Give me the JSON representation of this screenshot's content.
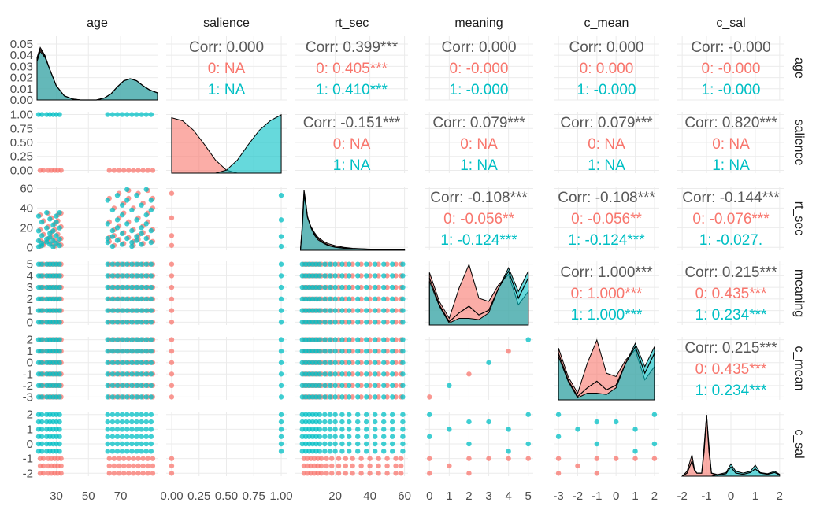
{
  "colors": {
    "group0": "#F8766D",
    "group1": "#00BFC4",
    "overall": "#595959",
    "grid": "#ebebeb",
    "line": "#000000"
  },
  "chart_data": {
    "type": "scatter",
    "matrix": "pairs",
    "variables": [
      "age",
      "salience",
      "rt_sec",
      "meaning",
      "c_mean",
      "c_sal"
    ],
    "groups": [
      "0",
      "1"
    ],
    "axes": {
      "age": {
        "range": [
          18,
          93
        ],
        "ticks": [
          "30",
          "50",
          "70"
        ],
        "tick_values": [
          30,
          50,
          70
        ],
        "density_range": [
          0,
          0.057
        ],
        "density_ticks": [
          "0.00",
          "0.01",
          "0.02",
          "0.03",
          "0.04",
          "0.05"
        ],
        "density_tick_values": [
          0,
          0.01,
          0.02,
          0.03,
          0.04,
          0.05
        ]
      },
      "salience": {
        "range": [
          -0.05,
          1.05
        ],
        "ticks": [
          "0.00",
          "0.25",
          "0.50",
          "0.75",
          "1.00"
        ],
        "tick_values": [
          0,
          0.25,
          0.5,
          0.75,
          1
        ]
      },
      "rt_sec": {
        "range": [
          -3,
          62
        ],
        "ticks": [
          "20",
          "40",
          "60"
        ],
        "tick_values": [
          20,
          40,
          60
        ],
        "row_ticks": [
          "0",
          "20",
          "40",
          "60"
        ],
        "row_tick_values": [
          0,
          20,
          40,
          60
        ]
      },
      "meaning": {
        "range": [
          -0.25,
          5.25
        ],
        "ticks": [
          "0",
          "1",
          "2",
          "3",
          "4",
          "5"
        ],
        "tick_values": [
          0,
          1,
          2,
          3,
          4,
          5
        ]
      },
      "c_mean": {
        "range": [
          -3.25,
          2.25
        ],
        "ticks": [
          "-3",
          "-2",
          "-1",
          "0",
          "1",
          "2"
        ],
        "tick_values": [
          -3,
          -2,
          -1,
          0,
          1,
          2
        ]
      },
      "c_sal": {
        "range": [
          -2.2,
          2.2
        ],
        "ticks": [
          "-2",
          "-1",
          "0",
          "1",
          "2"
        ],
        "tick_values": [
          -2,
          -1,
          0,
          1,
          2
        ],
        "row_ticks": [
          "-2",
          "-1",
          "0",
          "1",
          "2"
        ],
        "row_tick_values": [
          -2,
          -1,
          0,
          1,
          2
        ]
      }
    },
    "correlations": [
      {
        "row": "age",
        "col": "salience",
        "overall": "Corr: 0.000",
        "g0": "0:   NA",
        "g1": "1:   NA"
      },
      {
        "row": "age",
        "col": "rt_sec",
        "overall": "Corr: 0.399***",
        "g0": "0: 0.405***",
        "g1": "1: 0.410***"
      },
      {
        "row": "age",
        "col": "meaning",
        "overall": "Corr: 0.000",
        "g0": "0: -0.000",
        "g1": "1: -0.000"
      },
      {
        "row": "age",
        "col": "c_mean",
        "overall": "Corr: 0.000",
        "g0": "0: 0.000",
        "g1": "1: -0.000"
      },
      {
        "row": "age",
        "col": "c_sal",
        "overall": "Corr: -0.000",
        "g0": "0: -0.000",
        "g1": "1: -0.000"
      },
      {
        "row": "salience",
        "col": "rt_sec",
        "overall": "Corr: -0.151***",
        "g0": "0:   NA",
        "g1": "1:   NA"
      },
      {
        "row": "salience",
        "col": "meaning",
        "overall": "Corr: 0.079***",
        "g0": "0:   NA",
        "g1": "1:   NA"
      },
      {
        "row": "salience",
        "col": "c_mean",
        "overall": "Corr: 0.079***",
        "g0": "0:   NA",
        "g1": "1:   NA"
      },
      {
        "row": "salience",
        "col": "c_sal",
        "overall": "Corr: 0.820***",
        "g0": "0:   NA",
        "g1": "1:   NA"
      },
      {
        "row": "rt_sec",
        "col": "meaning",
        "overall": "Corr: -0.108***",
        "g0": "0: -0.056**",
        "g1": "1: -0.124***"
      },
      {
        "row": "rt_sec",
        "col": "c_mean",
        "overall": "Corr: -0.108***",
        "g0": "0: -0.056**",
        "g1": "1: -0.124***"
      },
      {
        "row": "rt_sec",
        "col": "c_sal",
        "overall": "Corr: -0.144***",
        "g0": "0: -0.076***",
        "g1": "1: -0.027."
      },
      {
        "row": "meaning",
        "col": "c_mean",
        "overall": "Corr: 1.000***",
        "g0": "0: 1.000***",
        "g1": "1: 1.000***"
      },
      {
        "row": "meaning",
        "col": "c_sal",
        "overall": "Corr: 0.215***",
        "g0": "0: 0.435***",
        "g1": "1: 0.234***"
      },
      {
        "row": "c_mean",
        "col": "c_sal",
        "overall": "Corr: 0.215***",
        "g0": "0: 0.435***",
        "g1": "1: 0.234***"
      }
    ],
    "densities": {
      "age": {
        "x": [
          18,
          20,
          23,
          26,
          30,
          35,
          40,
          45,
          50,
          55,
          60,
          64,
          68,
          72,
          76,
          80,
          84,
          88,
          93
        ],
        "overall": [
          0.04,
          0.05,
          0.043,
          0.03,
          0.014,
          0.004,
          0.001,
          0.0,
          0.0,
          0.0,
          0.002,
          0.006,
          0.013,
          0.019,
          0.021,
          0.019,
          0.014,
          0.01,
          0.007
        ],
        "g0": [
          0.042,
          0.052,
          0.044,
          0.03,
          0.014,
          0.004,
          0.001,
          0.0,
          0.0,
          0.0,
          0.002,
          0.006,
          0.013,
          0.019,
          0.021,
          0.019,
          0.014,
          0.01,
          0.007
        ],
        "g1": [
          0.038,
          0.048,
          0.042,
          0.03,
          0.014,
          0.004,
          0.001,
          0.0,
          0.0,
          0.0,
          0.002,
          0.006,
          0.013,
          0.019,
          0.021,
          0.019,
          0.014,
          0.01,
          0.007
        ]
      },
      "salience": {
        "x": [
          0,
          0.1,
          0.2,
          0.3,
          0.4,
          0.5,
          0.6,
          0.7,
          0.8,
          0.9,
          1
        ],
        "g0": [
          0.93,
          0.88,
          0.72,
          0.48,
          0.22,
          0.05,
          0.0,
          0.0,
          0.0,
          0.0,
          0.0
        ],
        "g1": [
          0.0,
          0.0,
          0.0,
          0.0,
          0.0,
          0.05,
          0.22,
          0.48,
          0.72,
          0.88,
          0.98
        ]
      },
      "rt_sec": {
        "x": [
          0,
          1,
          2,
          3,
          4,
          6,
          8,
          10,
          13,
          16,
          20,
          25,
          30,
          40,
          50,
          60
        ],
        "overall": [
          0.02,
          0.35,
          0.85,
          0.7,
          0.5,
          0.35,
          0.25,
          0.18,
          0.12,
          0.08,
          0.05,
          0.035,
          0.025,
          0.015,
          0.01,
          0.008
        ],
        "g0": [
          0.02,
          0.3,
          0.8,
          0.68,
          0.5,
          0.36,
          0.27,
          0.2,
          0.14,
          0.1,
          0.07,
          0.045,
          0.03,
          0.018,
          0.012,
          0.009
        ],
        "g1": [
          0.02,
          0.4,
          0.92,
          0.74,
          0.52,
          0.34,
          0.23,
          0.16,
          0.11,
          0.07,
          0.045,
          0.03,
          0.02,
          0.012,
          0.008,
          0.006
        ]
      },
      "meaning": {
        "x": [
          0,
          0.5,
          1,
          1.5,
          2,
          2.5,
          3,
          3.5,
          4,
          4.5,
          5
        ],
        "overall": [
          0.7,
          0.3,
          0.05,
          0.18,
          0.28,
          0.15,
          0.22,
          0.55,
          0.8,
          0.4,
          0.7
        ],
        "g0": [
          0.78,
          0.35,
          0.1,
          0.55,
          0.9,
          0.4,
          0.35,
          0.6,
          0.75,
          0.3,
          0.5
        ],
        "g1": [
          0.65,
          0.28,
          0.03,
          0.1,
          0.1,
          0.08,
          0.18,
          0.55,
          0.85,
          0.5,
          0.8
        ]
      },
      "c_mean": {
        "x": [
          -3,
          -2.5,
          -2,
          -1.5,
          -1,
          -0.5,
          0,
          0.5,
          1,
          1.5,
          2
        ],
        "overall": [
          0.7,
          0.3,
          0.05,
          0.18,
          0.28,
          0.15,
          0.22,
          0.55,
          0.8,
          0.4,
          0.7
        ],
        "g0": [
          0.78,
          0.35,
          0.1,
          0.55,
          0.9,
          0.4,
          0.35,
          0.6,
          0.75,
          0.3,
          0.5
        ],
        "g1": [
          0.65,
          0.28,
          0.03,
          0.1,
          0.1,
          0.08,
          0.18,
          0.55,
          0.85,
          0.5,
          0.8
        ]
      },
      "c_sal": {
        "x": [
          -2,
          -1.8,
          -1.6,
          -1.5,
          -1.4,
          -1.2,
          -1.1,
          -1.0,
          -0.9,
          -0.8,
          -0.5,
          -0.2,
          0,
          0.2,
          0.5,
          0.8,
          1,
          1.2,
          1.5,
          1.8,
          2
        ],
        "overall": [
          0,
          0.05,
          0.25,
          0.1,
          0.05,
          0.05,
          0.4,
          1.0,
          0.4,
          0.05,
          0.02,
          0.04,
          0.15,
          0.05,
          0.03,
          0.06,
          0.12,
          0.05,
          0.03,
          0.06,
          0.02
        ],
        "g0": [
          0,
          0.08,
          0.35,
          0.12,
          0.05,
          0.05,
          0.5,
          1.0,
          0.5,
          0.05,
          0,
          0,
          0,
          0,
          0,
          0,
          0,
          0,
          0,
          0,
          0
        ],
        "g1": [
          0,
          0,
          0,
          0,
          0,
          0,
          0,
          0,
          0,
          0,
          0.03,
          0.06,
          0.2,
          0.08,
          0.05,
          0.08,
          0.18,
          0.06,
          0.04,
          0.08,
          0.03
        ]
      }
    },
    "scatter": {
      "age_x": {
        "g0": [
          20,
          22,
          25,
          27,
          29,
          31,
          33,
          63,
          66,
          69,
          72,
          75,
          78,
          81,
          84,
          87,
          90
        ],
        "g1": [
          19,
          21,
          24,
          26,
          28,
          30,
          32,
          62,
          65,
          68,
          71,
          74,
          77,
          80,
          83,
          86,
          89
        ]
      },
      "salience_levels": [
        0,
        1
      ],
      "meaning_levels": [
        0,
        1,
        2,
        3,
        4,
        5
      ],
      "c_mean_levels": [
        -3,
        -2,
        -1,
        0,
        1,
        2
      ],
      "c_sal_levels_g0": [
        -2,
        -1.5,
        -1
      ],
      "c_sal_levels_g1": [
        -0.5,
        0,
        0.5,
        1,
        1.5,
        2
      ],
      "rt_x": {
        "g0": [
          2,
          4,
          6,
          8,
          10,
          12,
          15,
          18,
          22,
          26,
          30,
          35,
          40,
          45,
          50,
          55,
          58
        ],
        "g1": [
          1,
          3,
          5,
          7,
          9,
          11,
          14,
          17,
          20,
          24,
          28,
          33,
          38,
          43,
          48,
          53,
          59
        ]
      },
      "c_sal_vs_meaning_g0": [
        [
          0,
          -2
        ],
        [
          1,
          -1.5
        ],
        [
          2,
          -1
        ],
        [
          3,
          -1
        ],
        [
          4,
          -1
        ],
        [
          5,
          -1
        ],
        [
          0,
          -1
        ],
        [
          2,
          -2
        ]
      ],
      "c_sal_vs_meaning_g1": [
        [
          0,
          2
        ],
        [
          1,
          1
        ],
        [
          2,
          0
        ],
        [
          3,
          1.5
        ],
        [
          4,
          -0.5
        ],
        [
          5,
          2
        ],
        [
          0,
          0.5
        ],
        [
          2,
          1.5
        ],
        [
          4,
          1
        ],
        [
          5,
          0
        ]
      ]
    }
  }
}
